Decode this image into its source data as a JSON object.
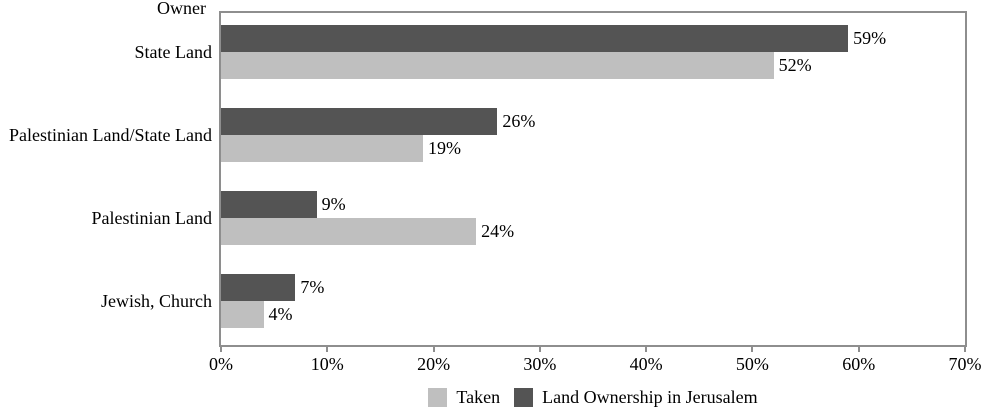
{
  "chart_data": {
    "type": "bar",
    "orientation": "horizontal",
    "title": "",
    "xlabel": "",
    "ylabel": "Owner",
    "xlim": [
      0,
      70
    ],
    "x_tick_labels": [
      "0%",
      "10%",
      "20%",
      "30%",
      "40%",
      "50%",
      "60%",
      "70%"
    ],
    "grid": false,
    "legend_position": "bottom",
    "categories": [
      "State Land",
      "Palestinian Land/State Land",
      "Palestinian Land",
      "Jewish, Church"
    ],
    "series": [
      {
        "name": "Land Ownership in Jerusalem",
        "color": "#545454",
        "values": [
          59,
          26,
          9,
          7
        ],
        "labels": [
          "59%",
          "26%",
          "9%",
          "7%"
        ]
      },
      {
        "name": "Taken",
        "color": "#bfbfbf",
        "values": [
          52,
          19,
          24,
          4
        ],
        "labels": [
          "52%",
          "19%",
          "24%",
          "4%"
        ]
      }
    ],
    "colors": {
      "plot_border": "#8e8e8e",
      "text": "#000000",
      "background": "#ffffff"
    }
  }
}
